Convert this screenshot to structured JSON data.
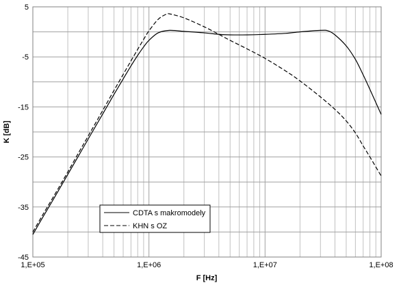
{
  "chart_data": {
    "type": "line",
    "xlabel": "F [Hz]",
    "ylabel": "K [dB]",
    "x_scale": "log",
    "xlim": [
      100000,
      100000000
    ],
    "ylim": [
      -45,
      5
    ],
    "x_tick_labels": [
      "1,E+05",
      "1,E+06",
      "1,E+07",
      "1,E+08"
    ],
    "y_ticks": [
      5,
      -5,
      -15,
      -25,
      -35,
      -45
    ],
    "grid": true,
    "legend_position": "bottom-left",
    "series": [
      {
        "name": "CDTA s makromodely",
        "style": "solid",
        "color": "#000000",
        "x": [
          100000,
          120000,
          150000,
          200000,
          250000,
          300000,
          400000,
          500000,
          600000,
          700000,
          800000,
          900000,
          1000000,
          1200000,
          1500000,
          2000000,
          3000000,
          4000000,
          5000000,
          7000000,
          10000000,
          15000000,
          20000000,
          30000000,
          35000000,
          40000000,
          50000000,
          60000000,
          70000000,
          80000000,
          100000000
        ],
        "y": [
          -40.5,
          -37.3,
          -33.5,
          -28.5,
          -24.6,
          -21.4,
          -16.4,
          -12.5,
          -9.4,
          -6.8,
          -4.7,
          -3.0,
          -1.7,
          -0.2,
          0.3,
          0.1,
          -0.2,
          -0.5,
          -0.6,
          -0.6,
          -0.5,
          -0.3,
          0.0,
          0.3,
          0.2,
          -0.6,
          -2.8,
          -5.5,
          -8.6,
          -11.5,
          -16.5
        ]
      },
      {
        "name": "KHN s OZ",
        "style": "dashed",
        "color": "#000000",
        "x": [
          100000,
          120000,
          150000,
          200000,
          250000,
          300000,
          400000,
          500000,
          600000,
          700000,
          800000,
          900000,
          1000000,
          1200000,
          1400000,
          1500000,
          2000000,
          3000000,
          4000000,
          5000000,
          7000000,
          10000000,
          15000000,
          20000000,
          30000000,
          40000000,
          50000000,
          60000000,
          70000000,
          80000000,
          100000000
        ],
        "y": [
          -40.0,
          -36.8,
          -33.0,
          -28.0,
          -24.0,
          -20.8,
          -15.7,
          -11.7,
          -8.5,
          -5.8,
          -3.5,
          -1.5,
          0.2,
          2.5,
          3.5,
          3.6,
          2.8,
          1.0,
          -0.5,
          -1.7,
          -3.4,
          -5.3,
          -7.8,
          -9.8,
          -13.0,
          -15.5,
          -17.8,
          -20.2,
          -22.8,
          -25.0,
          -28.8
        ]
      }
    ]
  }
}
